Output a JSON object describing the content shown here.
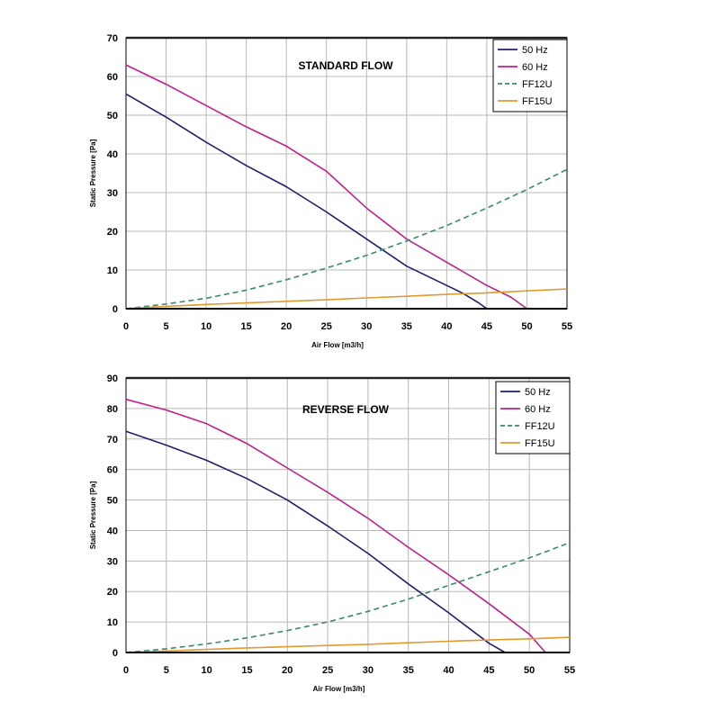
{
  "chart_data": [
    {
      "type": "line",
      "title": "STANDARD FLOW",
      "xlabel": "Air Flow [m3/h]",
      "ylabel": "Static Pressure [Pa]",
      "xlim": [
        0,
        55
      ],
      "ylim": [
        0,
        70
      ],
      "xticks": [
        0,
        5,
        10,
        15,
        20,
        25,
        30,
        35,
        40,
        45,
        50,
        55
      ],
      "yticks": [
        0,
        10,
        20,
        30,
        40,
        50,
        60,
        70
      ],
      "grid": true,
      "legend_position": "top-right",
      "series": [
        {
          "name": "50 Hz",
          "color": "#1f1f6e",
          "style": "solid",
          "points": [
            [
              0,
              55.5
            ],
            [
              5,
              49.5
            ],
            [
              10,
              43
            ],
            [
              15,
              37
            ],
            [
              20,
              31.5
            ],
            [
              25,
              25
            ],
            [
              30,
              18
            ],
            [
              35,
              11
            ],
            [
              40,
              6
            ],
            [
              42,
              4
            ],
            [
              44,
              1.5
            ],
            [
              45,
              0
            ]
          ]
        },
        {
          "name": "60 Hz",
          "color": "#c0208a",
          "style": "solid",
          "points": [
            [
              0,
              63
            ],
            [
              5,
              58
            ],
            [
              10,
              52.5
            ],
            [
              15,
              47
            ],
            [
              20,
              42
            ],
            [
              25,
              35.5
            ],
            [
              30,
              26
            ],
            [
              35,
              18
            ],
            [
              40,
              12
            ],
            [
              45,
              6
            ],
            [
              48,
              3
            ],
            [
              50,
              0
            ]
          ]
        },
        {
          "name": "FF12U",
          "color": "#3a8a6a",
          "style": "dashed",
          "points": [
            [
              0,
              0
            ],
            [
              5,
              1.2
            ],
            [
              10,
              2.7
            ],
            [
              15,
              4.8
            ],
            [
              20,
              7.5
            ],
            [
              25,
              10.5
            ],
            [
              30,
              13.8
            ],
            [
              35,
              17.5
            ],
            [
              40,
              21.5
            ],
            [
              45,
              26
            ],
            [
              50,
              30.8
            ],
            [
              55,
              36
            ]
          ]
        },
        {
          "name": "FF15U",
          "color": "#e09a30",
          "style": "solid",
          "points": [
            [
              0,
              0
            ],
            [
              5,
              0.6
            ],
            [
              10,
              1.1
            ],
            [
              15,
              1.5
            ],
            [
              20,
              1.9
            ],
            [
              25,
              2.3
            ],
            [
              30,
              2.8
            ],
            [
              35,
              3.2
            ],
            [
              40,
              3.7
            ],
            [
              45,
              4.1
            ],
            [
              50,
              4.6
            ],
            [
              55,
              5.1
            ]
          ]
        }
      ]
    },
    {
      "type": "line",
      "title": "REVERSE FLOW",
      "xlabel": "Air Flow [m3/h]",
      "ylabel": "Static Pressure [Pa]",
      "xlim": [
        0,
        55
      ],
      "ylim": [
        0,
        90
      ],
      "xticks": [
        0,
        5,
        10,
        15,
        20,
        25,
        30,
        35,
        40,
        45,
        50,
        55
      ],
      "yticks": [
        0,
        10,
        20,
        30,
        40,
        50,
        60,
        70,
        80,
        90
      ],
      "grid": true,
      "legend_position": "top-right",
      "series": [
        {
          "name": "50 Hz",
          "color": "#1f1f6e",
          "style": "solid",
          "points": [
            [
              0,
              72.5
            ],
            [
              5,
              68
            ],
            [
              10,
              63
            ],
            [
              15,
              57
            ],
            [
              20,
              50
            ],
            [
              25,
              41.5
            ],
            [
              30,
              32.5
            ],
            [
              35,
              22.5
            ],
            [
              40,
              13
            ],
            [
              45,
              3
            ],
            [
              47,
              0
            ]
          ]
        },
        {
          "name": "60 Hz",
          "color": "#c0208a",
          "style": "solid",
          "points": [
            [
              0,
              83
            ],
            [
              5,
              79.5
            ],
            [
              10,
              75
            ],
            [
              15,
              68.5
            ],
            [
              20,
              60.5
            ],
            [
              25,
              52.5
            ],
            [
              30,
              44
            ],
            [
              35,
              34.5
            ],
            [
              40,
              25.5
            ],
            [
              45,
              16
            ],
            [
              50,
              6
            ],
            [
              52,
              0
            ]
          ]
        },
        {
          "name": "FF12U",
          "color": "#3a8a6a",
          "style": "dashed",
          "points": [
            [
              0,
              0
            ],
            [
              5,
              1.2
            ],
            [
              10,
              2.8
            ],
            [
              15,
              4.8
            ],
            [
              20,
              7.2
            ],
            [
              25,
              10
            ],
            [
              30,
              13.5
            ],
            [
              35,
              17.5
            ],
            [
              40,
              22
            ],
            [
              45,
              26.5
            ],
            [
              50,
              31
            ],
            [
              55,
              36
            ]
          ]
        },
        {
          "name": "FF15U",
          "color": "#e09a30",
          "style": "solid",
          "points": [
            [
              0,
              0
            ],
            [
              5,
              0.5
            ],
            [
              10,
              1
            ],
            [
              15,
              1.5
            ],
            [
              20,
              1.9
            ],
            [
              25,
              2.3
            ],
            [
              30,
              2.7
            ],
            [
              35,
              3.2
            ],
            [
              40,
              3.7
            ],
            [
              45,
              4.1
            ],
            [
              50,
              4.5
            ],
            [
              55,
              5
            ]
          ]
        }
      ]
    }
  ]
}
